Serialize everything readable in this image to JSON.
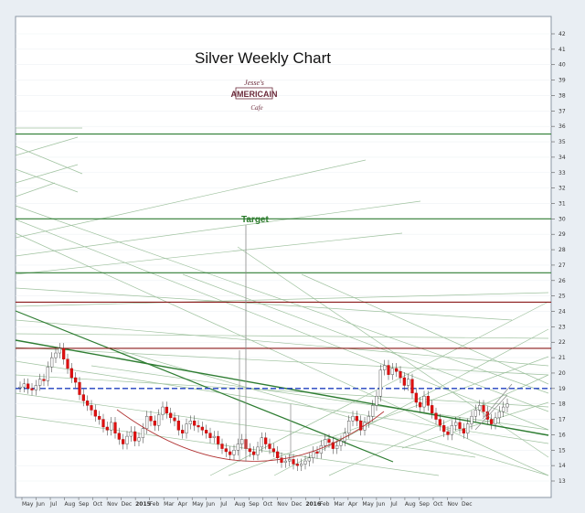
{
  "chart_data": {
    "type": "candlestick",
    "title": "Silver Weekly Chart",
    "annotation_target": "Target",
    "logo_text": [
      "Jesse's",
      "AMERICAIN",
      "Cafe"
    ],
    "y_axis": {
      "side": "right",
      "range": [
        12.5,
        43
      ],
      "ticks": [
        13,
        14,
        15,
        16,
        17,
        18,
        19,
        20,
        21,
        22,
        23,
        24,
        25,
        26,
        27,
        28,
        29,
        30,
        31,
        32,
        33,
        34,
        35,
        36,
        37,
        38,
        39,
        40,
        41,
        42
      ]
    },
    "x_axis": {
      "labels": [
        "May",
        "Jun",
        "Jul",
        "Aug",
        "Sep",
        "Oct",
        "Nov",
        "Dec",
        "2015",
        "Feb",
        "Mar",
        "Apr",
        "May",
        "Jun",
        "Jul",
        "Aug",
        "Sep",
        "Oct",
        "Nov",
        "Dec",
        "2016",
        "Feb",
        "Mar",
        "Apr",
        "May",
        "Jun",
        "Jul",
        "Aug",
        "Sep",
        "Oct",
        "Nov",
        "Dec"
      ]
    },
    "grid": true,
    "horizontal_levels": [
      {
        "value": 35.5,
        "color": "#2e7d32"
      },
      {
        "value": 30,
        "color": "#2e7d32"
      },
      {
        "value": 26.5,
        "color": "#2e7d32"
      },
      {
        "value": 24.6,
        "color": "#8b1a1a"
      },
      {
        "value": 21.6,
        "color": "#8b1a1a"
      },
      {
        "value": 19.0,
        "color": "#1f3fbf"
      }
    ],
    "weekly_close": [
      19.1,
      19.3,
      19.0,
      18.9,
      19.2,
      19.6,
      19.5,
      20.4,
      21.0,
      21.3,
      21.6,
      20.9,
      20.3,
      19.7,
      19.4,
      18.6,
      18.2,
      17.9,
      17.6,
      17.2,
      17.0,
      16.5,
      16.3,
      16.8,
      16.1,
      15.7,
      15.4,
      15.9,
      16.2,
      15.6,
      15.8,
      16.4,
      17.2,
      16.9,
      16.6,
      17.3,
      17.8,
      17.4,
      17.1,
      16.9,
      16.3,
      16.1,
      16.7,
      16.9,
      16.6,
      16.5,
      16.3,
      16.1,
      15.8,
      15.9,
      15.4,
      15.1,
      14.9,
      14.7,
      15.0,
      15.4,
      15.7,
      15.1,
      14.9,
      14.7,
      15.2,
      15.8,
      15.4,
      15.1,
      14.9,
      14.5,
      14.2,
      14.3,
      14.4,
      14.1,
      14.0,
      14.1,
      14.3,
      14.5,
      14.9,
      14.8,
      15.3,
      15.7,
      15.5,
      15.1,
      15.3,
      15.6,
      16.1,
      16.9,
      17.2,
      16.9,
      16.3,
      16.8,
      17.2,
      17.9,
      18.5,
      20.2,
      20.5,
      19.9,
      20.3,
      20.1,
      19.7,
      19.2,
      19.6,
      18.7,
      18.1,
      17.8,
      18.5,
      17.9,
      17.4,
      17.0,
      16.6,
      16.2,
      16.0,
      16.6,
      16.8,
      16.4,
      16.1,
      16.7,
      17.2,
      17.6,
      17.9,
      17.5,
      17.0,
      16.7,
      17.1,
      17.5,
      17.8,
      18.0
    ]
  }
}
